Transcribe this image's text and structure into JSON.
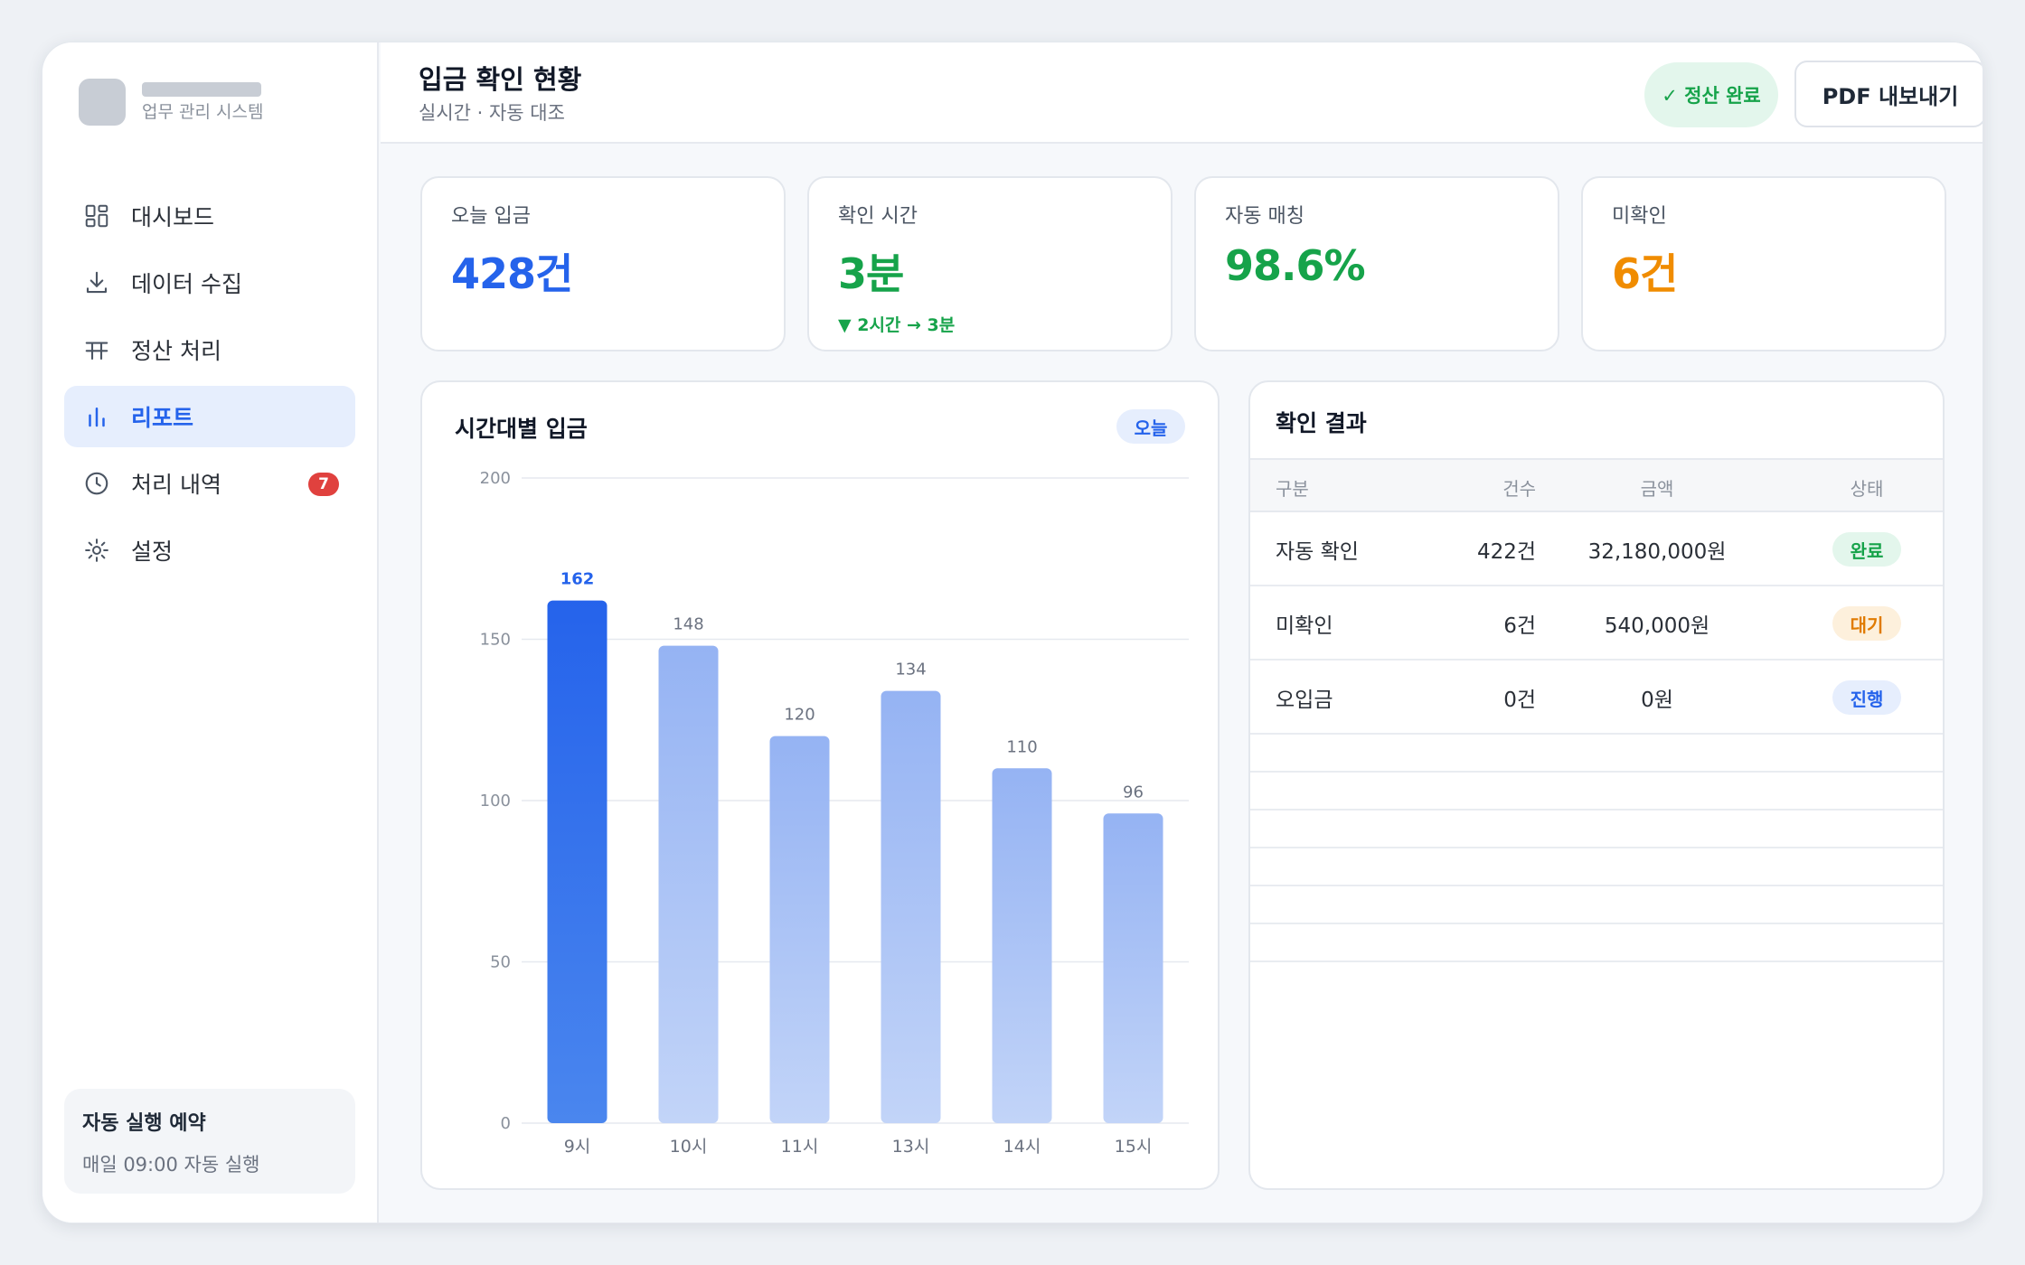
{
  "brand": {
    "subtitle": "업무 관리 시스템"
  },
  "sidebar": {
    "items": [
      {
        "label": "대시보드",
        "icon": "grid-icon"
      },
      {
        "label": "데이터 수집",
        "icon": "download-icon"
      },
      {
        "label": "정산 처리",
        "icon": "table-icon"
      },
      {
        "label": "리포트",
        "icon": "bar-chart-icon",
        "active": true
      },
      {
        "label": "처리 내역",
        "icon": "clock-icon",
        "badge": "7"
      },
      {
        "label": "설정",
        "icon": "gear-icon"
      }
    ],
    "schedule": {
      "title": "자동 실행 예약",
      "subtitle": "매일 09:00 자동 실행"
    }
  },
  "header": {
    "title": "입금 확인 현황",
    "subtitle": "실시간 · 자동 대조",
    "status": "✓ 정산 완료",
    "export_label": "PDF 내보내기"
  },
  "kpis": [
    {
      "label": "오늘 입금",
      "value": "428건",
      "color": "#2563eb"
    },
    {
      "label": "확인 시간",
      "value": "3분",
      "delta": "▼ 2시간 → 3분",
      "color": "#16a34a"
    },
    {
      "label": "자동 매칭",
      "value": "98.6%",
      "color": "#16a34a"
    },
    {
      "label": "미확인",
      "value": "6건",
      "color": "#f08c00"
    }
  ],
  "chart": {
    "title": "시간대별 입금",
    "period": "오늘"
  },
  "chart_data": {
    "type": "bar",
    "categories": [
      "9시",
      "10시",
      "11시",
      "13시",
      "14시",
      "15시"
    ],
    "values": [
      162,
      148,
      120,
      134,
      110,
      96
    ],
    "highlight_index": 0,
    "ylim": [
      0,
      200
    ],
    "yticks": [
      0,
      50,
      100,
      150,
      200
    ],
    "grid": true,
    "colors": {
      "highlight": "#2563eb",
      "normal": "#9db8f5"
    }
  },
  "results": {
    "title": "확인 결과",
    "columns": [
      "구분",
      "건수",
      "금액",
      "상태"
    ],
    "rows": [
      {
        "name": "자동 확인",
        "count": "422건",
        "amount": "32,180,000원",
        "status": "완료",
        "status_bg": "#e3f6ec",
        "status_fg": "#16a34a"
      },
      {
        "name": "미확인",
        "count": "6건",
        "amount": "540,000원",
        "status": "대기",
        "status_bg": "#fdf0dc",
        "status_fg": "#e07b00"
      },
      {
        "name": "오입금",
        "count": "0건",
        "amount": "0원",
        "status": "진행",
        "status_bg": "#e6eefd",
        "status_fg": "#2563eb"
      }
    ]
  }
}
